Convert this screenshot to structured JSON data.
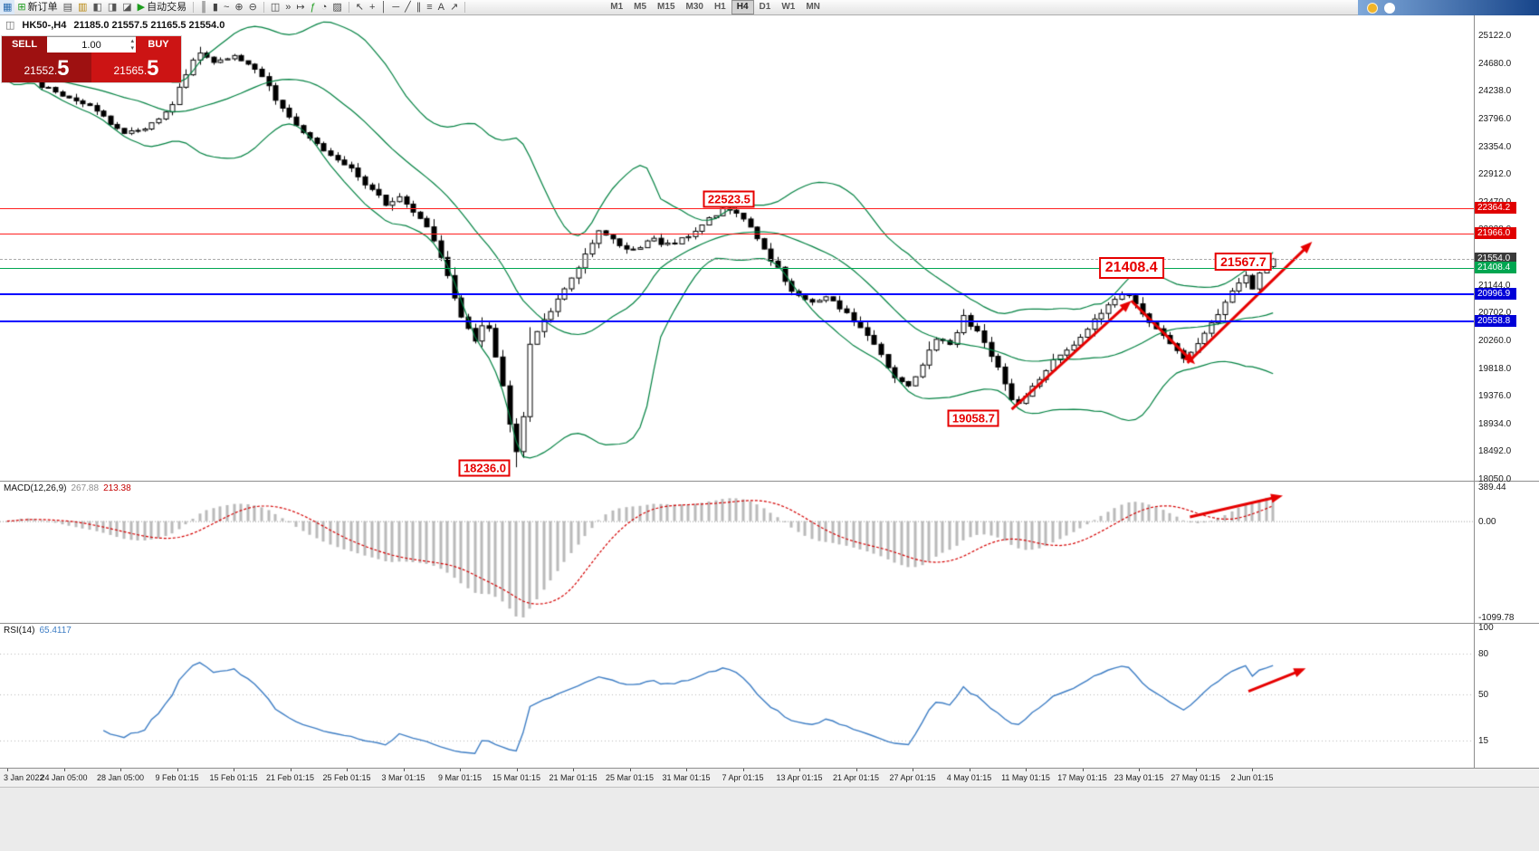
{
  "toolbar": {
    "groups": [
      {
        "name": "standard",
        "items": [
          {
            "name": "chart-window-icon",
            "glyph": "▦",
            "color": "#2b6cb0"
          },
          {
            "name": "new-order-button",
            "label": "新订单",
            "icon": {
              "name": "new-order-icon",
              "glyph": "⊞",
              "color": "#1f9d1f"
            }
          },
          {
            "name": "charts-menu-icon",
            "glyph": "▤",
            "color": "#555555"
          },
          {
            "name": "profiles-icon",
            "glyph": "▥",
            "color": "#b8860b"
          },
          {
            "name": "market-watch-icon",
            "glyph": "◧",
            "color": "#555555"
          },
          {
            "name": "navigator-icon",
            "glyph": "◨",
            "color": "#555555"
          },
          {
            "name": "terminal-icon",
            "glyph": "◪",
            "color": "#555555"
          },
          {
            "name": "auto-trading-button",
            "label": "自动交易",
            "icon": {
              "name": "auto-trading-icon",
              "glyph": "▶",
              "color": "#1f9d1f"
            }
          }
        ]
      },
      {
        "name": "chart-types",
        "items": [
          {
            "name": "bars-chart-icon",
            "glyph": "║",
            "color": "#444444"
          },
          {
            "name": "candlestick-chart-icon",
            "glyph": "▮",
            "color": "#444444"
          },
          {
            "name": "line-chart-icon",
            "glyph": "~",
            "color": "#444444"
          },
          {
            "name": "zoom-in-icon",
            "glyph": "⊕",
            "color": "#444444"
          },
          {
            "name": "zoom-out-icon",
            "glyph": "⊖",
            "color": "#444444"
          }
        ]
      },
      {
        "name": "window-tools",
        "items": [
          {
            "name": "tile-windows-icon",
            "glyph": "◫",
            "color": "#444444"
          },
          {
            "name": "auto-scroll-icon",
            "glyph": "»",
            "color": "#444444"
          },
          {
            "name": "chart-shift-icon",
            "glyph": "↦",
            "color": "#444444"
          },
          {
            "name": "indicators-icon",
            "glyph": "ƒ",
            "color": "#1f9d1f"
          },
          {
            "name": "periods-icon",
            "glyph": "◔",
            "color": "#444444"
          },
          {
            "name": "templates-icon",
            "glyph": "▨",
            "color": "#444444"
          }
        ]
      },
      {
        "name": "line-studies",
        "items": [
          {
            "name": "cursor-icon",
            "glyph": "↖",
            "color": "#444444"
          },
          {
            "name": "crosshair-icon",
            "glyph": "+",
            "color": "#444444"
          },
          {
            "name": "vertical-line-icon",
            "glyph": "│",
            "color": "#444444"
          },
          {
            "name": "horizontal-line-icon",
            "glyph": "─",
            "color": "#444444"
          },
          {
            "name": "trendline-icon",
            "glyph": "╱",
            "color": "#444444"
          },
          {
            "name": "channel-icon",
            "glyph": "∥",
            "color": "#444444"
          },
          {
            "name": "fibonacci-icon",
            "glyph": "≡",
            "color": "#444444"
          },
          {
            "name": "text-icon",
            "glyph": "A",
            "color": "#444444"
          },
          {
            "name": "arrows-icon",
            "glyph": "↗",
            "color": "#444444"
          }
        ]
      }
    ],
    "timeframes": [
      "M1",
      "M5",
      "M15",
      "M30",
      "H1",
      "H4",
      "D1",
      "W1",
      "MN"
    ],
    "active_timeframe": "H4",
    "right_icons": [
      {
        "name": "coin-icon",
        "color": "#f0b429"
      },
      {
        "name": "account-icon",
        "color": "#ffffff"
      }
    ]
  },
  "chart": {
    "icon_glyph": "◫",
    "symbol_period": "HK50-,H4",
    "ohlc": "21185.0 21557.5 21165.5 21554.0"
  },
  "trade_panel": {
    "sell_label": "SELL",
    "buy_label": "BUY",
    "volume": "1.00",
    "sell_price": "21552.5",
    "buy_price": "21565.5",
    "sell_price_small": "21552.",
    "sell_price_big": "5",
    "buy_price_small": "21565.",
    "buy_price_big": "5"
  },
  "colors": {
    "sell_bg": "#9e1111",
    "buy_bg": "#cc1414",
    "annotation_red": "#e60000",
    "bollinger_green": "#008040",
    "macd_histogram": "#b9b9b9",
    "macd_signal": "#d40000",
    "rsi_blue": "#3d7dc4",
    "candle_up": "#ffffff",
    "candle_down": "#000000",
    "toolbar_right_from": "#7fa8d9",
    "toolbar_right_to": "#17458a"
  },
  "price_axis": {
    "labels": [
      "25122.0",
      "24680.0",
      "24238.0",
      "23796.0",
      "23354.0",
      "22912.0",
      "22470.0",
      "22028.0",
      "21586.0",
      "21144.0",
      "20702.0",
      "20260.0",
      "19818.0",
      "19376.0",
      "18934.0",
      "18492.0",
      "18050.0"
    ]
  },
  "hlines": [
    {
      "tag": "22364.2",
      "price": 22364.2,
      "line_color": "#ff2020",
      "tag_bg": "#e00000",
      "style": "solid",
      "thickness": 1
    },
    {
      "tag": "21966.0",
      "price": 21966.0,
      "line_color": "#ff2020",
      "tag_bg": "#e00000",
      "style": "solid",
      "thickness": 1
    },
    {
      "tag": "21554.0",
      "price": 21554.0,
      "line_color": "#aaaaaa",
      "tag_bg": "#3a3a3a",
      "style": "dashed",
      "thickness": 1
    },
    {
      "tag": "21408.4",
      "price": 21408.4,
      "line_color": "#00a651",
      "tag_bg": "#00a651",
      "style": "solid",
      "thickness": 1
    },
    {
      "tag": "20996.9",
      "price": 20996.9,
      "line_color": "#0000ff",
      "tag_bg": "#0000d8",
      "style": "solid",
      "thickness": 2
    },
    {
      "tag": "20558.8",
      "price": 20558.8,
      "line_color": "#0000ff",
      "tag_bg": "#0000d8",
      "style": "solid",
      "thickness": 2
    }
  ],
  "callouts": [
    {
      "text": "22523.5",
      "x_t": 0.57,
      "price": 22510,
      "size": "normal"
    },
    {
      "text": "21408.4",
      "x_t": 0.886,
      "price": 21408,
      "size": "large"
    },
    {
      "text": "21567.7",
      "x_t": 0.974,
      "price": 21520,
      "size": "medium"
    },
    {
      "text": "19058.7",
      "x_t": 0.762,
      "price": 19020,
      "size": "normal"
    },
    {
      "text": "18236.0",
      "x_t": 0.378,
      "price": 18230,
      "size": "normal"
    }
  ],
  "macd": {
    "label": "MACD(12,26,9)",
    "value": "267.88",
    "signal_value": "213.38",
    "axis_top": "389.44",
    "axis_zero": "0.00",
    "axis_bottom": "-1099.78"
  },
  "rsi": {
    "label": "RSI(14)",
    "value": "65.4117",
    "axis": [
      "100",
      "80",
      "50",
      "15"
    ],
    "levels": [
      80,
      50,
      15
    ]
  },
  "time_axis": [
    "3 Jan 2022",
    "24 Jan 05:00",
    "28 Jan 05:00",
    "9 Feb 01:15",
    "15 Feb 01:15",
    "21 Feb 01:15",
    "25 Feb 01:15",
    "3 Mar 01:15",
    "9 Mar 01:15",
    "15 Mar 01:15",
    "21 Mar 01:15",
    "25 Mar 01:15",
    "31 Mar 01:15",
    "7 Apr 01:15",
    "13 Apr 01:15",
    "21 Apr 01:15",
    "27 Apr 01:15",
    "4 May 01:15",
    "11 May 01:15",
    "17 May 01:15",
    "23 May 01:15",
    "27 May 01:15",
    "2 Jun 01:15"
  ],
  "chart_data": {
    "type": "candlestick",
    "symbol": "HK50",
    "timeframe": "H4",
    "bars": 185,
    "noise": 70,
    "visible_range": {
      "price_top": 25122.0,
      "price_bottom": 18050.0,
      "first_label": "3 Jan 2022",
      "last_label": "2 Jun 01:15"
    },
    "key_points": {
      "low": 18236.0,
      "low_t": 0.401,
      "high": 22523.5,
      "high_t": 0.567,
      "last_close": 21554.0,
      "last_high": 21567.7
    },
    "price_path": [
      [
        0.0,
        24430
      ],
      [
        0.01,
        24650
      ],
      [
        0.028,
        24300
      ],
      [
        0.05,
        24140
      ],
      [
        0.07,
        23940
      ],
      [
        0.09,
        23560
      ],
      [
        0.11,
        23620
      ],
      [
        0.13,
        24020
      ],
      [
        0.15,
        24860
      ],
      [
        0.163,
        24700
      ],
      [
        0.178,
        24790
      ],
      [
        0.198,
        24580
      ],
      [
        0.213,
        24080
      ],
      [
        0.228,
        23660
      ],
      [
        0.248,
        23340
      ],
      [
        0.268,
        23060
      ],
      [
        0.285,
        22720
      ],
      [
        0.3,
        22420
      ],
      [
        0.31,
        22540
      ],
      [
        0.32,
        22310
      ],
      [
        0.332,
        22040
      ],
      [
        0.345,
        21440
      ],
      [
        0.36,
        20560
      ],
      [
        0.37,
        20260
      ],
      [
        0.378,
        20640
      ],
      [
        0.388,
        19860
      ],
      [
        0.395,
        19120
      ],
      [
        0.401,
        18430
      ],
      [
        0.406,
        18640
      ],
      [
        0.412,
        20140
      ],
      [
        0.424,
        20580
      ],
      [
        0.44,
        21060
      ],
      [
        0.455,
        21560
      ],
      [
        0.468,
        22040
      ],
      [
        0.48,
        21820
      ],
      [
        0.495,
        21700
      ],
      [
        0.51,
        21860
      ],
      [
        0.525,
        21760
      ],
      [
        0.54,
        21960
      ],
      [
        0.555,
        22200
      ],
      [
        0.567,
        22400
      ],
      [
        0.578,
        22260
      ],
      [
        0.59,
        21960
      ],
      [
        0.605,
        21500
      ],
      [
        0.62,
        21060
      ],
      [
        0.635,
        20860
      ],
      [
        0.65,
        20960
      ],
      [
        0.662,
        20700
      ],
      [
        0.675,
        20460
      ],
      [
        0.69,
        20010
      ],
      [
        0.702,
        19660
      ],
      [
        0.713,
        19520
      ],
      [
        0.725,
        19960
      ],
      [
        0.735,
        20300
      ],
      [
        0.745,
        20160
      ],
      [
        0.755,
        20640
      ],
      [
        0.768,
        20360
      ],
      [
        0.78,
        19920
      ],
      [
        0.792,
        19360
      ],
      [
        0.8,
        19240
      ],
      [
        0.812,
        19580
      ],
      [
        0.825,
        19900
      ],
      [
        0.84,
        20160
      ],
      [
        0.855,
        20500
      ],
      [
        0.872,
        20860
      ],
      [
        0.884,
        21010
      ],
      [
        0.9,
        20620
      ],
      [
        0.915,
        20300
      ],
      [
        0.93,
        19960
      ],
      [
        0.942,
        20260
      ],
      [
        0.953,
        20560
      ],
      [
        0.963,
        20900
      ],
      [
        0.972,
        21190
      ],
      [
        0.979,
        21330
      ],
      [
        0.984,
        21090
      ],
      [
        0.99,
        21390
      ],
      [
        1.0,
        21554
      ]
    ],
    "bollinger": {
      "period": 20,
      "deviation": 2
    },
    "macd_params": {
      "fast": 12,
      "slow": 26,
      "signal": 9,
      "display_value": 267.88,
      "display_signal": 213.38,
      "axis_max": 389.44,
      "axis_min": -1099.78
    },
    "rsi_params": {
      "period": 14,
      "display_value": 65.4117
    },
    "trend_arrows": {
      "price": [
        [
          0.792,
          19160,
          0.886,
          20890
        ],
        [
          0.886,
          20890,
          0.936,
          19880
        ],
        [
          0.93,
          19900,
          1.028,
          21830
        ]
      ],
      "macd": [
        0.932,
        0.25,
        1.005,
        0.1
      ],
      "rsi": [
        0.978,
        0.47,
        1.023,
        0.31
      ]
    },
    "support_resistance": [
      22364.2,
      21966.0,
      21408.4,
      20996.9,
      20558.8
    ]
  }
}
